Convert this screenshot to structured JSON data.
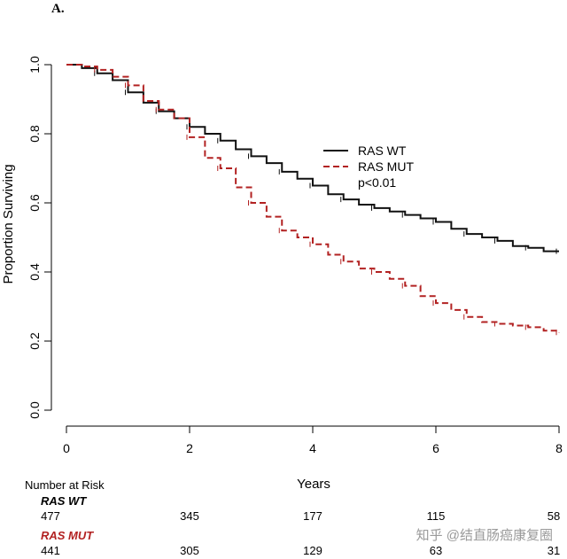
{
  "panel_label": "A.",
  "chart_data": {
    "type": "line",
    "title": "",
    "xlabel": "Years",
    "ylabel": "Proportion Surviving",
    "xlim": [
      0,
      8
    ],
    "ylim": [
      0,
      1
    ],
    "x_ticks": [
      "0",
      "2",
      "4",
      "6",
      "8"
    ],
    "y_ticks": [
      "0.0",
      "0.2",
      "0.4",
      "0.6",
      "0.8",
      "1.0"
    ],
    "legend": {
      "placement": "upper-right",
      "pvalue": "p<0.01"
    },
    "series": [
      {
        "name": "RAS WT",
        "color": "#111111",
        "style": "solid",
        "x": [
          0,
          0.25,
          0.5,
          0.75,
          1.0,
          1.25,
          1.5,
          1.75,
          2.0,
          2.25,
          2.5,
          2.75,
          3.0,
          3.25,
          3.5,
          3.75,
          4.0,
          4.25,
          4.5,
          4.75,
          5.0,
          5.25,
          5.5,
          5.75,
          6.0,
          6.25,
          6.5,
          6.75,
          7.0,
          7.25,
          7.5,
          7.75,
          8.0
        ],
        "y": [
          1.0,
          0.99,
          0.975,
          0.955,
          0.92,
          0.89,
          0.865,
          0.845,
          0.82,
          0.8,
          0.78,
          0.755,
          0.735,
          0.715,
          0.69,
          0.67,
          0.65,
          0.625,
          0.61,
          0.595,
          0.585,
          0.575,
          0.565,
          0.555,
          0.545,
          0.525,
          0.51,
          0.5,
          0.49,
          0.475,
          0.47,
          0.46,
          0.46
        ]
      },
      {
        "name": "RAS MUT",
        "color": "#b22222",
        "style": "dashed",
        "x": [
          0,
          0.25,
          0.5,
          0.75,
          1.0,
          1.25,
          1.5,
          1.75,
          2.0,
          2.25,
          2.5,
          2.75,
          3.0,
          3.25,
          3.5,
          3.75,
          4.0,
          4.25,
          4.5,
          4.75,
          5.0,
          5.25,
          5.5,
          5.75,
          6.0,
          6.25,
          6.5,
          6.75,
          7.0,
          7.25,
          7.5,
          7.75,
          8.0
        ],
        "y": [
          1.0,
          0.995,
          0.985,
          0.965,
          0.94,
          0.895,
          0.87,
          0.845,
          0.79,
          0.73,
          0.7,
          0.645,
          0.6,
          0.56,
          0.52,
          0.5,
          0.48,
          0.45,
          0.43,
          0.41,
          0.4,
          0.38,
          0.36,
          0.33,
          0.31,
          0.29,
          0.27,
          0.255,
          0.25,
          0.245,
          0.24,
          0.23,
          0.225
        ]
      }
    ]
  },
  "risk_table": {
    "title": "Number at Risk",
    "times": [
      "0",
      "2",
      "4",
      "6",
      "8"
    ],
    "groups": [
      {
        "name": "RAS WT",
        "color": "#000000",
        "values": [
          "477",
          "345",
          "177",
          "115",
          "58"
        ]
      },
      {
        "name": "RAS MUT",
        "color": "#b22222",
        "values": [
          "441",
          "305",
          "129",
          "63",
          "31"
        ]
      }
    ]
  },
  "watermark": "知乎 @结直肠癌康复圈"
}
